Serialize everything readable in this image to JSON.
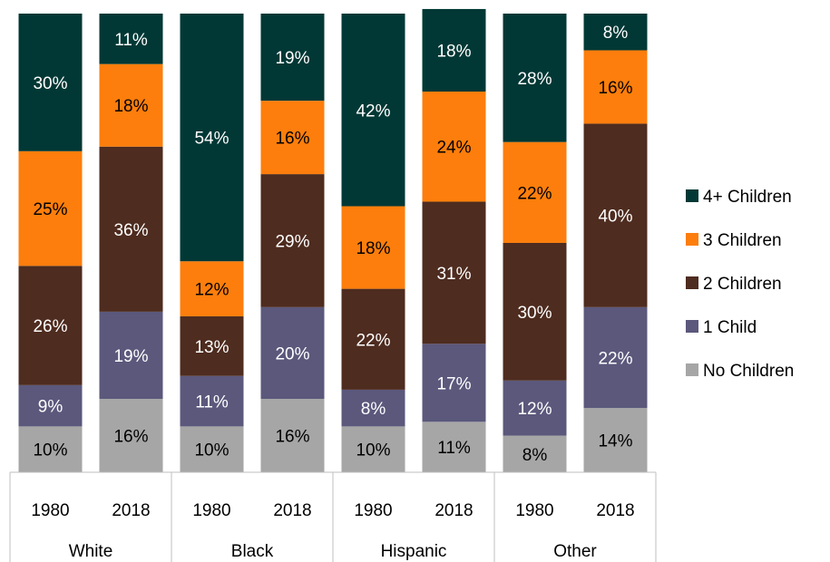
{
  "chart_data": {
    "type": "bar",
    "stacked": true,
    "percent": true,
    "groups": [
      {
        "name": "White",
        "categories": [
          "1980",
          "2018"
        ]
      },
      {
        "name": "Black",
        "categories": [
          "1980",
          "2018"
        ]
      },
      {
        "name": "Hispanic",
        "categories": [
          "1980",
          "2018"
        ]
      },
      {
        "name": "Other",
        "categories": [
          "1980",
          "2018"
        ]
      }
    ],
    "categories": [
      "White 1980",
      "White 2018",
      "Black 1980",
      "Black 2018",
      "Hispanic 1980",
      "Hispanic 2018",
      "Other 1980",
      "Other 2018"
    ],
    "series": [
      {
        "name": "No Children",
        "color": "#a6a6a6",
        "label_color": "#000000",
        "values": [
          10,
          16,
          10,
          16,
          10,
          11,
          8,
          14
        ]
      },
      {
        "name": "1 Child",
        "color": "#5b587c",
        "label_color": "#ffffff",
        "values": [
          9,
          19,
          11,
          20,
          8,
          17,
          12,
          22
        ]
      },
      {
        "name": "2 Children",
        "color": "#4e2c1f",
        "label_color": "#ffffff",
        "values": [
          26,
          36,
          13,
          29,
          22,
          31,
          30,
          40
        ]
      },
      {
        "name": "3 Children",
        "color": "#fd7e0c",
        "label_color": "#000000",
        "values": [
          25,
          18,
          12,
          16,
          18,
          24,
          22,
          16
        ]
      },
      {
        "name": "4+ Children",
        "color": "#013835",
        "label_color": "#ffffff",
        "values": [
          30,
          11,
          54,
          19,
          42,
          18,
          28,
          8
        ]
      }
    ],
    "ylim": [
      0,
      100
    ],
    "legend_position": "right",
    "grid": false,
    "title": "",
    "xlabel": "",
    "ylabel": ""
  }
}
